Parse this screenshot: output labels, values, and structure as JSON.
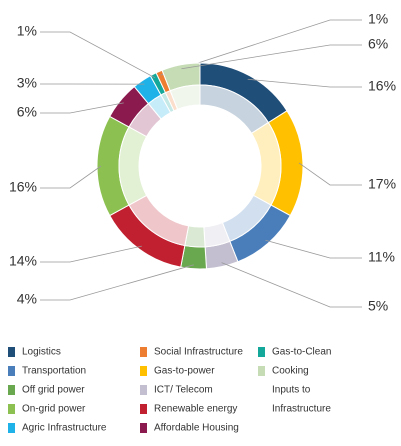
{
  "chart_data": {
    "type": "donut",
    "categories": [
      "Logistics",
      "Gas-to-power",
      "Transportation",
      "ICT/ Telecom",
      "Off grid power",
      "Renewable energy",
      "On-grid power",
      "Affordable Housing",
      "Agric Infrastructure",
      "Gas-to-Clean",
      "Social Infrastructure",
      "Cooking"
    ],
    "values": [
      16,
      17,
      11,
      5,
      4,
      14,
      16,
      6,
      3,
      1,
      1,
      6
    ],
    "value_labels": [
      "16%",
      "17%",
      "11%",
      "5%",
      "4%",
      "14%",
      "16%",
      "6%",
      "3%",
      "1%",
      "1%",
      "6%"
    ],
    "colors": [
      "#1f4e79",
      "#ffc000",
      "#4a7ebb",
      "#c3bfd0",
      "#6aa84f",
      "#c0202f",
      "#8cc152",
      "#8b1a4f",
      "#1fb2e8",
      "#14a89a",
      "#ed7d31",
      "#c5dcb5"
    ],
    "legend_extra": [
      "Inputs to",
      "Infrastructure"
    ]
  }
}
